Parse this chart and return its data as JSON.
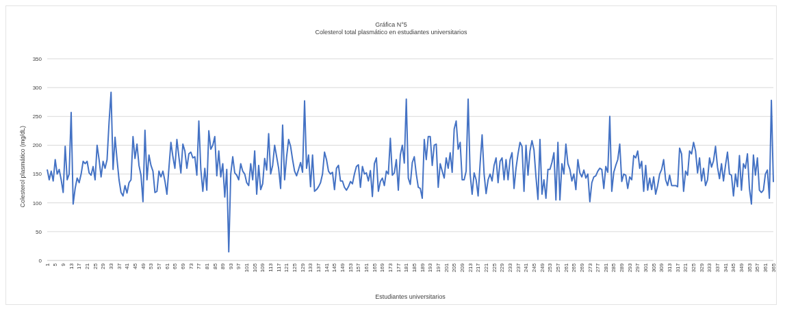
{
  "chart_data": {
    "type": "line",
    "title": "Gráfica N°5",
    "subtitle": "Colesterol total plasmático en estudiantes universitarios",
    "xlabel": "Estudiantes universitarios",
    "ylabel": "Colesterol plasmático (mg/dL)",
    "categories": [
      "1",
      null,
      null,
      null,
      "5",
      null,
      null,
      null,
      "9",
      null,
      null,
      null,
      "13",
      null,
      null,
      null,
      "17",
      null,
      null,
      null,
      "21",
      null,
      null,
      null,
      "25",
      null,
      null,
      null,
      "29",
      null,
      null,
      null,
      "33",
      null,
      null,
      null,
      "37",
      null,
      null,
      null,
      "41",
      null,
      null,
      null,
      "45",
      null,
      null,
      null,
      "49",
      null,
      null,
      null,
      "53",
      null,
      null,
      null,
      "57",
      null,
      null,
      null,
      "61",
      null,
      null,
      null,
      "65",
      null,
      null,
      null,
      "69",
      null,
      null,
      null,
      "73",
      null,
      null,
      null,
      "77",
      null,
      null,
      null,
      "81",
      null,
      null,
      null,
      "85",
      null,
      null,
      null,
      "89",
      null,
      null,
      null,
      "93",
      null,
      null,
      null,
      "97",
      null,
      null,
      null,
      "101",
      null,
      null,
      null,
      "105",
      null,
      null,
      null,
      "109",
      null,
      null,
      null,
      "113",
      null,
      null,
      null,
      "117",
      null,
      null,
      null,
      "121",
      null,
      null,
      null,
      "125",
      null,
      null,
      null,
      "129",
      null,
      null,
      null,
      "133",
      null,
      null,
      null,
      "137",
      null,
      null,
      null,
      "141",
      null,
      null,
      null,
      "145",
      null,
      null,
      null,
      "149",
      null,
      null,
      null,
      "153",
      null,
      null,
      null,
      "157",
      null,
      null,
      null,
      "161",
      null,
      null,
      null,
      "165",
      null,
      null,
      null,
      "169",
      null,
      null,
      null,
      "173",
      null,
      null,
      null,
      "177",
      null,
      null,
      null,
      "181",
      null,
      null,
      null,
      "185",
      null,
      null,
      null,
      "189",
      null,
      null,
      null,
      "193",
      null,
      null,
      null,
      "197",
      null,
      null,
      null,
      "201",
      null,
      null,
      null,
      "205",
      null,
      null,
      null,
      "209",
      null,
      null,
      null,
      "213",
      null,
      null,
      null,
      "217",
      null,
      null,
      null,
      "221",
      null,
      null,
      null,
      "225",
      null,
      null,
      null,
      "229",
      null,
      null,
      null,
      "233",
      null,
      null,
      null,
      "237",
      null,
      null,
      null,
      "241",
      null,
      null,
      null,
      "245",
      null,
      null,
      null,
      "249",
      null,
      null,
      null,
      "253",
      null,
      null,
      null,
      "257",
      null,
      null,
      null,
      "261",
      null,
      null,
      null,
      "265",
      null,
      null,
      null,
      "269",
      null,
      null,
      null,
      "273",
      null,
      null,
      null,
      "277",
      null,
      null,
      null,
      "281",
      null,
      null,
      null,
      "285",
      null,
      null,
      null,
      "289",
      null,
      null,
      null,
      "293",
      null,
      null,
      null,
      "297",
      null,
      null,
      null,
      "301",
      null,
      null,
      null,
      "305",
      null,
      null,
      null,
      "309",
      null,
      null,
      null,
      "313",
      null,
      null,
      null,
      "317",
      null,
      null,
      null,
      "321",
      null,
      null,
      null,
      "325",
      null,
      null,
      null,
      "329",
      null,
      null,
      null,
      "333",
      null,
      null,
      null,
      "337",
      null,
      null,
      null,
      "341",
      null,
      null,
      null,
      "345",
      null,
      null,
      null,
      "349",
      null,
      null,
      null,
      "353",
      null,
      null,
      null,
      "357",
      null,
      null,
      null,
      "361",
      null,
      null,
      null,
      "365"
    ],
    "series": [
      {
        "color": "#4472c4",
        "values": [
          158,
          140,
          155,
          138,
          175,
          150,
          158,
          140,
          118,
          198,
          140,
          150,
          257,
          98,
          125,
          143,
          135,
          150,
          172,
          168,
          172,
          152,
          148,
          163,
          140,
          200,
          175,
          145,
          172,
          160,
          175,
          240,
          292,
          158,
          214,
          175,
          140,
          118,
          112,
          130,
          117,
          135,
          140,
          215,
          177,
          202,
          165,
          148,
          102,
          226,
          140,
          183,
          165,
          155,
          118,
          120,
          155,
          145,
          155,
          138,
          115,
          160,
          205,
          180,
          160,
          210,
          180,
          152,
          202,
          190,
          160,
          185,
          188,
          178,
          180,
          148,
          242,
          158,
          120,
          160,
          122,
          225,
          193,
          200,
          215,
          147,
          190,
          145,
          168,
          110,
          158,
          15,
          150,
          180,
          152,
          148,
          140,
          168,
          155,
          150,
          135,
          130,
          168,
          140,
          190,
          115,
          165,
          123,
          133,
          177,
          157,
          220,
          150,
          165,
          200,
          180,
          160,
          125,
          235,
          140,
          180,
          210,
          198,
          175,
          155,
          147,
          158,
          170,
          153,
          277,
          160,
          183,
          128,
          183,
          120,
          123,
          128,
          135,
          150,
          188,
          175,
          155,
          150,
          153,
          123,
          160,
          165,
          138,
          138,
          127,
          122,
          128,
          137,
          133,
          150,
          163,
          166,
          127,
          163,
          150,
          152,
          138,
          156,
          111,
          168,
          178,
          120,
          137,
          143,
          130,
          155,
          150,
          212,
          148,
          152,
          175,
          122,
          183,
          200,
          169,
          280,
          143,
          132,
          170,
          180,
          150,
          127,
          125,
          108,
          210,
          175,
          215,
          215,
          165,
          200,
          202,
          127,
          168,
          155,
          143,
          178,
          160,
          187,
          153,
          228,
          242,
          193,
          205,
          140,
          140,
          155,
          280,
          150,
          115,
          152,
          140,
          112,
          168,
          218,
          150,
          116,
          140,
          150,
          138,
          165,
          178,
          135,
          172,
          178,
          140,
          175,
          140,
          175,
          187,
          125,
          160,
          185,
          205,
          198,
          120,
          200,
          148,
          190,
          208,
          192,
          145,
          106,
          210,
          115,
          140,
          108,
          158,
          158,
          170,
          187,
          105,
          205,
          105,
          168,
          150,
          202,
          168,
          158,
          138,
          150,
          123,
          175,
          152,
          145,
          157,
          143,
          150,
          102,
          135,
          145,
          147,
          155,
          160,
          158,
          125,
          163,
          153,
          250,
          120,
          153,
          165,
          175,
          202,
          137,
          150,
          148,
          125,
          145,
          140,
          182,
          178,
          190,
          160,
          172,
          120,
          165,
          122,
          143,
          123,
          145,
          115,
          130,
          150,
          158,
          175,
          140,
          130,
          148,
          130,
          130,
          130,
          128,
          195,
          185,
          120,
          155,
          148,
          190,
          185,
          205,
          190,
          152,
          178,
          138,
          160,
          130,
          140,
          178,
          162,
          173,
          198,
          162,
          142,
          168,
          138,
          165,
          188,
          150,
          148,
          112,
          150,
          128,
          182,
          122,
          168,
          160,
          185,
          125,
          98,
          183,
          148,
          178,
          122,
          118,
          122,
          150,
          157,
          108,
          278,
          136
        ]
      }
    ],
    "ylim": [
      0,
      350
    ],
    "yticks": [
      0,
      50,
      100,
      150,
      200,
      250,
      300,
      350
    ],
    "grid": "y",
    "legend": false,
    "marker": "none",
    "line_style": "solid"
  }
}
